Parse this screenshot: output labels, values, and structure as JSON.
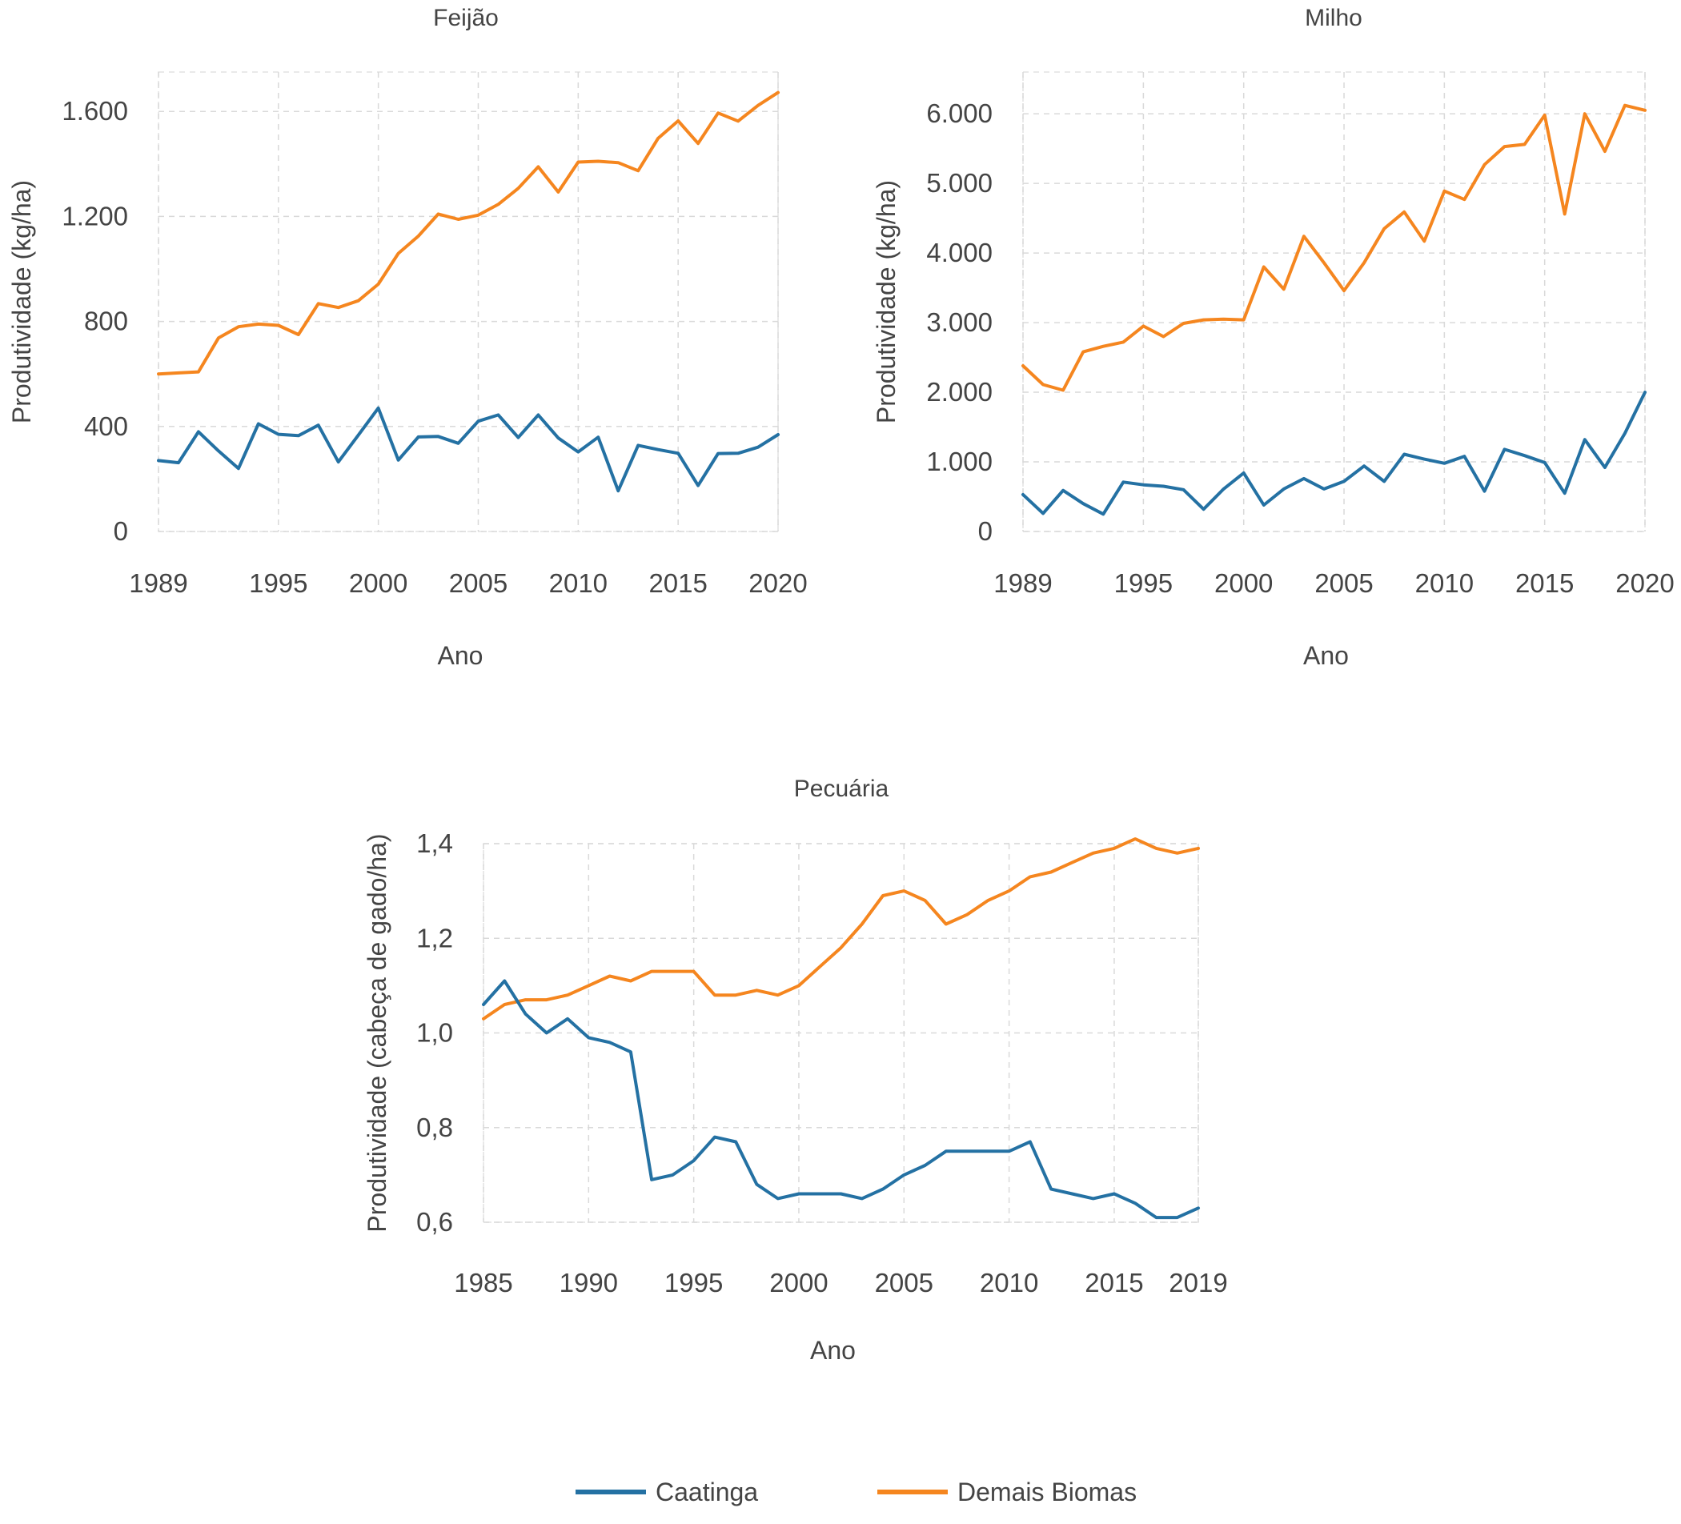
{
  "colors": {
    "caatinga": "#2471a3",
    "demais": "#f5861f"
  },
  "legend": [
    {
      "label": "Caatinga",
      "color": "#2471a3"
    },
    {
      "label": "Demais Biomas",
      "color": "#f5861f"
    }
  ],
  "chart_data": [
    {
      "type": "line",
      "title": "Feijão",
      "xlabel": "Ano",
      "ylabel": "Produtividade (kg/ha)",
      "xlim": [
        1989,
        2020
      ],
      "ylim": [
        0,
        1750
      ],
      "xticks": [
        1989,
        1995,
        2000,
        2005,
        2010,
        2015,
        2020
      ],
      "yticks": [
        0,
        400,
        800,
        1200,
        1600
      ],
      "ytick_labels": [
        "0",
        "400",
        "800",
        "1.200",
        "1.600"
      ],
      "x": [
        1989,
        1990,
        1991,
        1992,
        1993,
        1994,
        1995,
        1996,
        1997,
        1998,
        1999,
        2000,
        2001,
        2002,
        2003,
        2004,
        2005,
        2006,
        2007,
        2008,
        2009,
        2010,
        2011,
        2012,
        2013,
        2014,
        2015,
        2016,
        2017,
        2018,
        2019,
        2020
      ],
      "series": [
        {
          "name": "Caatinga",
          "color": "#2471a3",
          "values": [
            270,
            262,
            380,
            307,
            240,
            410,
            370,
            365,
            405,
            265,
            367,
            470,
            272,
            360,
            362,
            336,
            420,
            444,
            358,
            444,
            356,
            303,
            359,
            155,
            328,
            312,
            298,
            175,
            297,
            298,
            321,
            369
          ]
        },
        {
          "name": "Demais Biomas",
          "color": "#f5861f",
          "values": [
            600,
            604,
            608,
            737,
            780,
            790,
            785,
            750,
            868,
            853,
            879,
            942,
            1059,
            1125,
            1209,
            1189,
            1205,
            1246,
            1307,
            1389,
            1293,
            1407,
            1410,
            1405,
            1374,
            1498,
            1564,
            1478,
            1594,
            1563,
            1623,
            1672
          ]
        }
      ],
      "grid": true
    },
    {
      "type": "line",
      "title": "Milho",
      "xlabel": "Ano",
      "ylabel": "Produtividade (kg/ha)",
      "xlim": [
        1989,
        2020
      ],
      "ylim": [
        0,
        6600
      ],
      "xticks": [
        1989,
        1995,
        2000,
        2005,
        2010,
        2015,
        2020
      ],
      "yticks": [
        0,
        1000,
        2000,
        3000,
        4000,
        5000,
        6000
      ],
      "ytick_labels": [
        "0",
        "1.000",
        "2.000",
        "3.000",
        "4.000",
        "5.000",
        "6.000"
      ],
      "x": [
        1989,
        1990,
        1991,
        1992,
        1993,
        1994,
        1995,
        1996,
        1997,
        1998,
        1999,
        2000,
        2001,
        2002,
        2003,
        2004,
        2005,
        2006,
        2007,
        2008,
        2009,
        2010,
        2011,
        2012,
        2013,
        2014,
        2015,
        2016,
        2017,
        2018,
        2019,
        2020
      ],
      "series": [
        {
          "name": "Caatinga",
          "color": "#2471a3",
          "values": [
            530,
            260,
            590,
            400,
            250,
            710,
            670,
            650,
            600,
            320,
            610,
            840,
            380,
            610,
            760,
            610,
            720,
            940,
            720,
            1110,
            1040,
            980,
            1080,
            580,
            1180,
            1090,
            990,
            550,
            1320,
            920,
            1410,
            2000
          ]
        },
        {
          "name": "Demais Biomas",
          "color": "#f5861f",
          "values": [
            2380,
            2110,
            2030,
            2580,
            2660,
            2720,
            2950,
            2800,
            2990,
            3040,
            3050,
            3040,
            3800,
            3480,
            4240,
            3860,
            3460,
            3860,
            4350,
            4590,
            4170,
            4890,
            4770,
            5270,
            5530,
            5560,
            5980,
            4560,
            6000,
            5460,
            6120,
            6050
          ]
        }
      ],
      "grid": true
    },
    {
      "type": "line",
      "title": "Pecuária",
      "xlabel": "Ano",
      "ylabel": "Produtividade (cabeça de gado/ha)",
      "xlim": [
        1985,
        2019
      ],
      "ylim": [
        0.6,
        1.4
      ],
      "xticks": [
        1985,
        1990,
        1995,
        2000,
        2005,
        2010,
        2015,
        2019
      ],
      "yticks": [
        0.6,
        0.8,
        1.0,
        1.2,
        1.4
      ],
      "ytick_labels": [
        "0,6",
        "0,8",
        "1,0",
        "1,2",
        "1,4"
      ],
      "x": [
        1985,
        1986,
        1987,
        1988,
        1989,
        1990,
        1991,
        1992,
        1993,
        1994,
        1995,
        1996,
        1997,
        1998,
        1999,
        2000,
        2001,
        2002,
        2003,
        2004,
        2005,
        2006,
        2007,
        2008,
        2009,
        2010,
        2011,
        2012,
        2013,
        2014,
        2015,
        2016,
        2017,
        2018,
        2019
      ],
      "series": [
        {
          "name": "Caatinga",
          "color": "#2471a3",
          "values": [
            1.06,
            1.11,
            1.04,
            1.0,
            1.03,
            0.99,
            0.98,
            0.96,
            0.69,
            0.7,
            0.73,
            0.78,
            0.77,
            0.68,
            0.65,
            0.66,
            0.66,
            0.66,
            0.65,
            0.67,
            0.7,
            0.72,
            0.75,
            0.75,
            0.75,
            0.75,
            0.77,
            0.67,
            0.66,
            0.65,
            0.66,
            0.64,
            0.61,
            0.61,
            0.63
          ]
        },
        {
          "name": "Demais Biomas",
          "color": "#f5861f",
          "values": [
            1.03,
            1.06,
            1.07,
            1.07,
            1.08,
            1.1,
            1.12,
            1.11,
            1.13,
            1.13,
            1.13,
            1.08,
            1.08,
            1.09,
            1.08,
            1.1,
            1.14,
            1.18,
            1.23,
            1.29,
            1.3,
            1.28,
            1.23,
            1.25,
            1.28,
            1.3,
            1.33,
            1.34,
            1.36,
            1.38,
            1.39,
            1.41,
            1.39,
            1.38,
            1.39
          ]
        }
      ],
      "grid": true
    }
  ]
}
